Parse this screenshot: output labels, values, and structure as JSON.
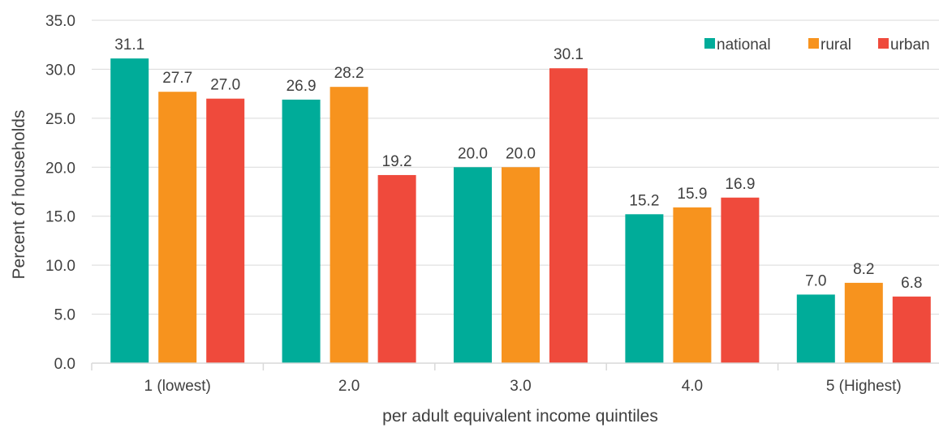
{
  "chart_data": {
    "type": "bar",
    "title": "",
    "xlabel": "per adult equivalent income quintiles",
    "ylabel": "Percent of households",
    "categories": [
      "1 (lowest)",
      "2.0",
      "3.0",
      "4.0",
      "5 (Highest)"
    ],
    "series": [
      {
        "name": "national",
        "color": "#00ac99",
        "values": [
          31.1,
          26.9,
          20.0,
          15.2,
          7.0
        ]
      },
      {
        "name": "rural",
        "color": "#f7931e",
        "values": [
          27.7,
          28.2,
          20.0,
          15.9,
          8.2
        ]
      },
      {
        "name": "urban",
        "color": "#ef4a3c",
        "values": [
          27.0,
          19.2,
          30.1,
          16.9,
          6.8
        ]
      }
    ],
    "ylim": [
      0,
      35
    ],
    "yticks": [
      "0.0",
      "5.0",
      "10.0",
      "15.0",
      "20.0",
      "25.0",
      "30.0",
      "35.0"
    ],
    "grid": true,
    "legend_position": "top-right",
    "colors": {
      "gridline": "#d9d9d9",
      "text": "#404040"
    }
  }
}
